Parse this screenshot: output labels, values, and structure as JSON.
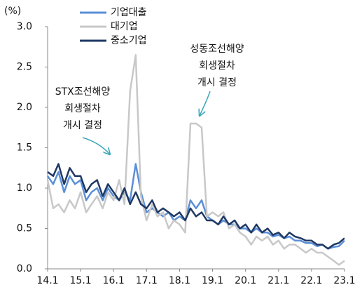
{
  "chart_data": {
    "type": "line",
    "unit_label": "(%)",
    "x": [
      14,
      14.17,
      14.33,
      14.5,
      14.67,
      14.83,
      15,
      15.17,
      15.33,
      15.5,
      15.67,
      15.83,
      16,
      16.17,
      16.33,
      16.5,
      16.67,
      16.83,
      17,
      17.17,
      17.33,
      17.5,
      17.67,
      17.83,
      18,
      18.17,
      18.33,
      18.5,
      18.67,
      18.83,
      19,
      19.17,
      19.33,
      19.5,
      19.67,
      19.83,
      20,
      20.17,
      20.33,
      20.5,
      20.67,
      20.83,
      21,
      21.17,
      21.33,
      21.5,
      21.67,
      21.83,
      22,
      22.17,
      22.33,
      22.5,
      22.67,
      22.83,
      23
    ],
    "series": [
      {
        "name": "기업대출",
        "color": "#5b8fd6",
        "width": 2.5,
        "values": [
          1.15,
          1.05,
          1.2,
          0.95,
          1.15,
          1.05,
          1.1,
          0.85,
          0.95,
          1.0,
          0.85,
          1.0,
          0.9,
          0.85,
          0.95,
          0.85,
          1.3,
          0.95,
          0.7,
          0.75,
          0.7,
          0.65,
          0.7,
          0.6,
          0.65,
          0.6,
          0.85,
          0.75,
          0.85,
          0.65,
          0.6,
          0.55,
          0.6,
          0.55,
          0.55,
          0.5,
          0.5,
          0.45,
          0.5,
          0.45,
          0.45,
          0.4,
          0.42,
          0.38,
          0.4,
          0.35,
          0.35,
          0.32,
          0.32,
          0.28,
          0.3,
          0.25,
          0.27,
          0.28,
          0.35
        ]
      },
      {
        "name": "대기업",
        "color": "#c8c8c8",
        "width": 2.5,
        "values": [
          1.1,
          0.75,
          0.8,
          0.7,
          0.85,
          0.75,
          0.95,
          0.7,
          0.8,
          0.9,
          0.75,
          0.95,
          0.85,
          1.1,
          0.8,
          2.2,
          2.65,
          0.9,
          0.6,
          0.8,
          0.65,
          0.7,
          0.5,
          0.6,
          0.55,
          0.45,
          1.8,
          1.8,
          1.75,
          0.65,
          0.7,
          0.65,
          0.7,
          0.5,
          0.55,
          0.45,
          0.4,
          0.3,
          0.4,
          0.35,
          0.4,
          0.3,
          0.35,
          0.25,
          0.3,
          0.3,
          0.25,
          0.2,
          0.25,
          0.2,
          0.2,
          0.15,
          0.1,
          0.05,
          0.1
        ]
      },
      {
        "name": "중소기업",
        "color": "#1f3864",
        "width": 2.5,
        "values": [
          1.2,
          1.15,
          1.3,
          1.05,
          1.25,
          1.15,
          1.15,
          0.95,
          1.05,
          1.1,
          0.9,
          1.05,
          0.95,
          0.85,
          1.0,
          0.8,
          0.95,
          0.8,
          0.75,
          0.85,
          0.7,
          0.75,
          0.7,
          0.65,
          0.7,
          0.6,
          0.75,
          0.65,
          0.7,
          0.6,
          0.6,
          0.55,
          0.65,
          0.55,
          0.6,
          0.5,
          0.55,
          0.45,
          0.55,
          0.45,
          0.5,
          0.42,
          0.45,
          0.38,
          0.45,
          0.4,
          0.38,
          0.35,
          0.35,
          0.3,
          0.3,
          0.25,
          0.3,
          0.32,
          0.38
        ]
      }
    ],
    "xlim": [
      14,
      23
    ],
    "xticks": [
      {
        "value": 14,
        "label": "14.1"
      },
      {
        "value": 15,
        "label": "15.1"
      },
      {
        "value": 16,
        "label": "16.1"
      },
      {
        "value": 17,
        "label": "17.1"
      },
      {
        "value": 18,
        "label": "18.1"
      },
      {
        "value": 19,
        "label": "19.1"
      },
      {
        "value": 20,
        "label": "20.1"
      },
      {
        "value": 21,
        "label": "21.1"
      },
      {
        "value": 22,
        "label": "22.1"
      },
      {
        "value": 23,
        "label": "23.1"
      }
    ],
    "ylim": [
      0,
      3
    ],
    "yticks": [
      {
        "value": 0,
        "label": "0.0"
      },
      0.5,
      {
        "value": 1,
        "label": "1.0"
      },
      1.5,
      {
        "value": 2,
        "label": "2.0"
      },
      2.5,
      {
        "value": 3,
        "label": "3.0"
      }
    ],
    "legend": "upper left",
    "annotations": [
      {
        "lines": [
          "STX조선해양",
          "회생절차",
          "개시 결정"
        ]
      },
      {
        "lines": [
          "성동조선해양",
          "회생절차",
          "개시 결정"
        ]
      }
    ]
  }
}
